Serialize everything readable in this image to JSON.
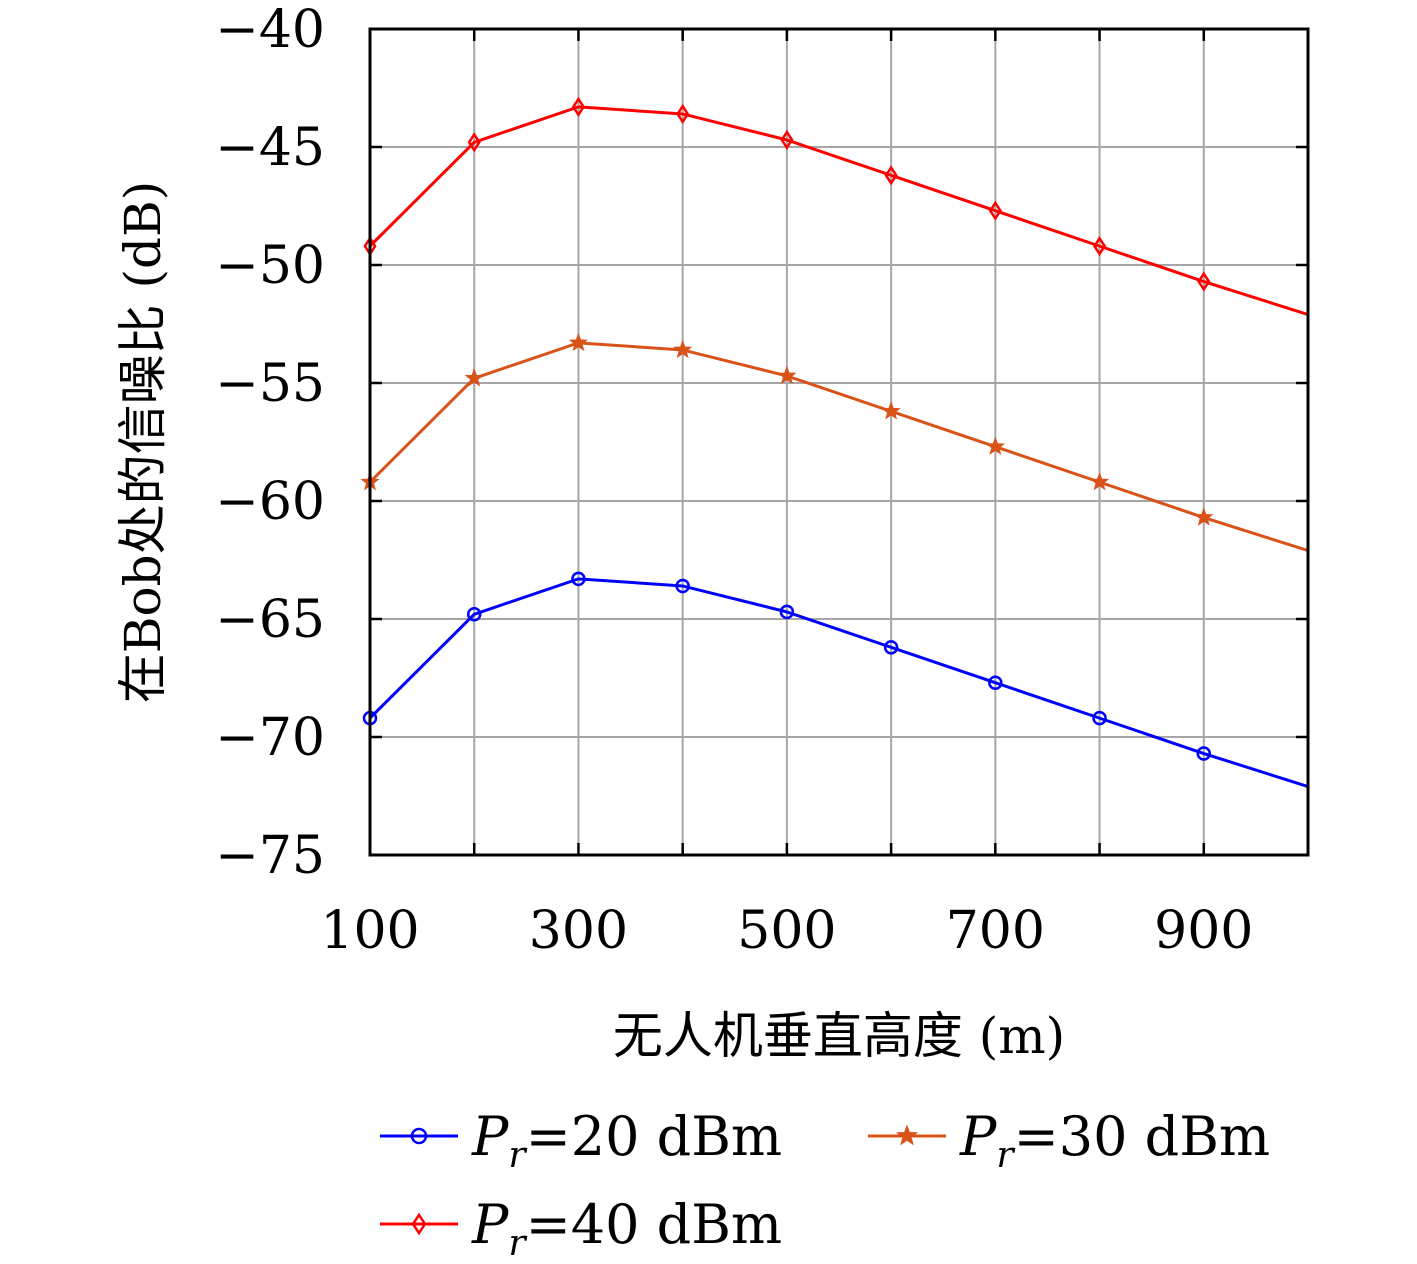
{
  "chart_data": {
    "type": "line",
    "xlabel": "无人机垂直高度 (m)",
    "ylabel": "在Bob处的信噪比 (dB)",
    "xlim": [
      100,
      1000
    ],
    "ylim": [
      -75,
      -40
    ],
    "xticks": [
      100,
      300,
      500,
      700,
      900
    ],
    "xtick_labels": [
      "100",
      "300",
      "500",
      "700",
      "900"
    ],
    "yticks": [
      -40,
      -45,
      -50,
      -55,
      -60,
      -65,
      -70,
      -75
    ],
    "ytick_labels": [
      "−40",
      "−45",
      "−50",
      "−55",
      "−60",
      "−65",
      "−70",
      "−75"
    ],
    "grid": true,
    "legend_position": "bottom",
    "x": [
      100,
      200,
      300,
      400,
      500,
      600,
      700,
      800,
      900
    ],
    "series": [
      {
        "name": "Pr=20 dBm",
        "legend_symbol": "P",
        "legend_subscript": "r",
        "legend_rest": "=20 dBm",
        "color": "#0000ff",
        "marker": "circle",
        "values": [
          -69.2,
          -64.8,
          -63.3,
          -63.6,
          -64.7,
          -66.2,
          -67.7,
          -69.2,
          -70.7
        ],
        "end_value": -72.1
      },
      {
        "name": "Pr=30 dBm",
        "legend_symbol": "P",
        "legend_subscript": "r",
        "legend_rest": "=30 dBm",
        "color": "#d95319",
        "marker": "star",
        "values": [
          -59.2,
          -54.8,
          -53.3,
          -53.6,
          -54.7,
          -56.2,
          -57.7,
          -59.2,
          -60.7
        ],
        "end_value": -62.1
      },
      {
        "name": "Pr=40 dBm",
        "legend_symbol": "P",
        "legend_subscript": "r",
        "legend_rest": "=40 dBm",
        "color": "#ff0000",
        "marker": "diamond",
        "values": [
          -49.2,
          -44.8,
          -43.3,
          -43.6,
          -44.7,
          -46.2,
          -47.7,
          -49.2,
          -50.7
        ],
        "end_value": -52.1
      }
    ]
  }
}
